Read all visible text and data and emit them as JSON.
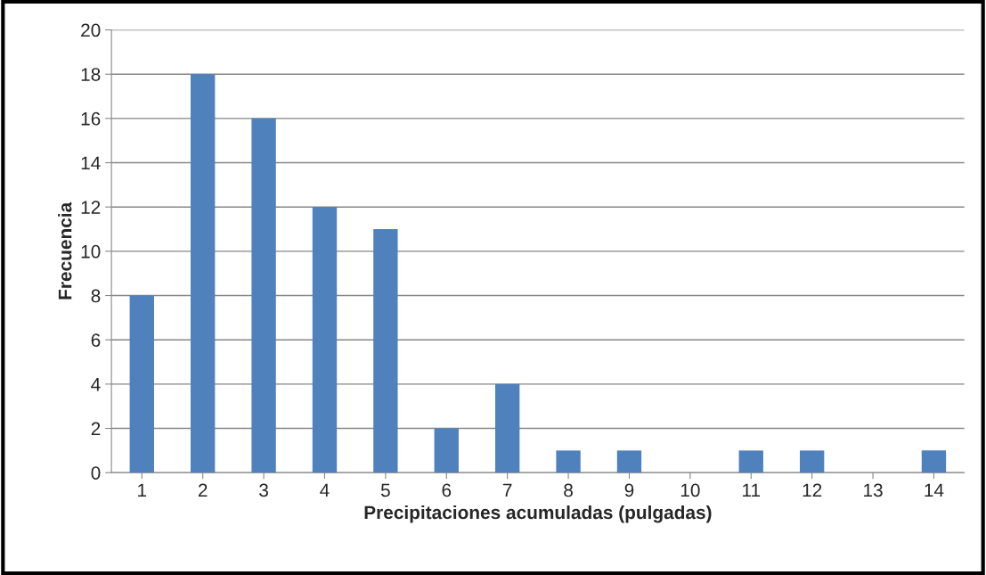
{
  "chart_data": {
    "type": "bar",
    "xlabel": "Precipitaciones acumuladas (pulgadas)",
    "ylabel": "Frecuencia",
    "categories": [
      "1",
      "2",
      "3",
      "4",
      "5",
      "6",
      "7",
      "8",
      "9",
      "10",
      "11",
      "12",
      "13",
      "14"
    ],
    "values": [
      8,
      18,
      16,
      12,
      11,
      2,
      4,
      1,
      1,
      0,
      1,
      1,
      0,
      1
    ],
    "color": "#4f81bd",
    "ylim": [
      0,
      20
    ],
    "yticks": [
      0,
      2,
      4,
      6,
      8,
      10,
      12,
      14,
      16,
      18,
      20
    ],
    "grid": "y"
  }
}
